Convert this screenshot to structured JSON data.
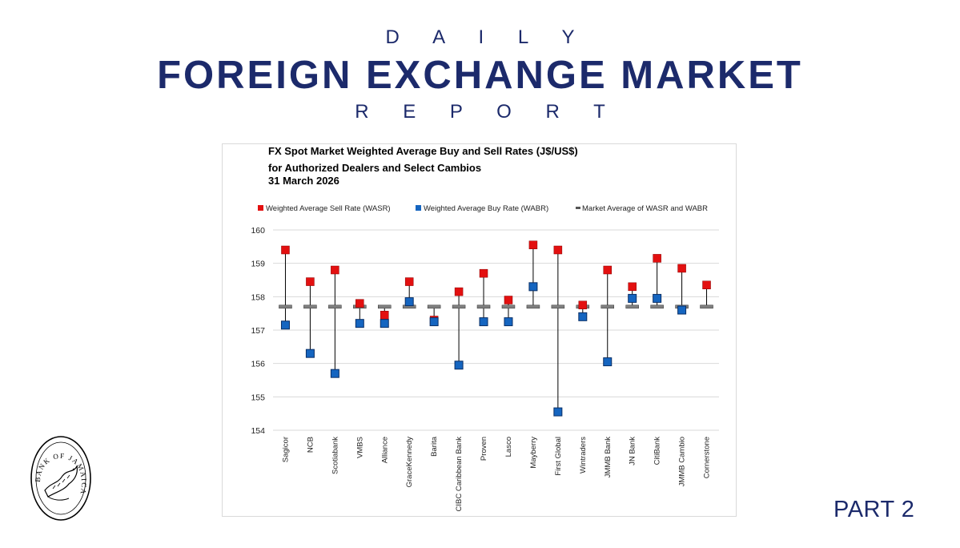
{
  "header": {
    "top": "D A I L Y",
    "main": "FOREIGN EXCHANGE MARKET",
    "bottom": "R E P O R T"
  },
  "footer": {
    "part": "PART 2"
  },
  "logo": {
    "text": "BANK OF JAMAICA"
  },
  "colors": {
    "navy": "#1c2a6b",
    "sell": "#e31010",
    "buy": "#1565c0",
    "avg": "#808080"
  },
  "chart_data": {
    "type": "scatter",
    "title_lines": [
      "FX Spot Market Weighted Average Buy and Sell Rates (J$/US$)",
      "for Authorized Dealers and Select Cambios",
      "31 March 2026"
    ],
    "legend": {
      "sell": "Weighted Average Sell Rate (WASR)",
      "buy": "Weighted Average Buy Rate (WABR)",
      "avg": "Market Average of WASR and WABR"
    },
    "legend_position": "top",
    "ylim": [
      154,
      160
    ],
    "yticks": [
      154,
      155,
      156,
      157,
      158,
      159,
      160
    ],
    "grid": true,
    "categories": [
      "Sagicor",
      "NCB",
      "Scotiabank",
      "VMBS",
      "Alliance",
      "GraceKennedy",
      "Barita",
      "CIBC Caribbean Bank",
      "Proven",
      "Lasco",
      "Mayberry",
      "First Global",
      "Wintraders",
      "JMMB Bank",
      "JN Bank",
      "CitiBank",
      "JMMB Cambio",
      "Cornerstone"
    ],
    "series": [
      {
        "name": "Weighted Average Sell Rate (WASR)",
        "values": [
          159.4,
          158.45,
          158.8,
          157.8,
          157.45,
          158.45,
          157.3,
          158.15,
          158.7,
          157.9,
          159.55,
          159.4,
          157.75,
          158.8,
          158.3,
          159.15,
          158.85,
          158.35
        ]
      },
      {
        "name": "Weighted Average Buy Rate (WABR)",
        "values": [
          157.15,
          156.3,
          155.7,
          157.2,
          157.2,
          157.85,
          157.25,
          155.95,
          157.25,
          157.25,
          158.3,
          154.55,
          157.4,
          156.05,
          157.95,
          157.95,
          157.6,
          null
        ]
      },
      {
        "name": "Market Average of WASR and WABR",
        "values": [
          157.7,
          157.7,
          157.7,
          157.7,
          157.7,
          157.7,
          157.7,
          157.7,
          157.7,
          157.7,
          157.7,
          157.7,
          157.7,
          157.7,
          157.7,
          157.7,
          157.7,
          157.7
        ]
      }
    ]
  }
}
